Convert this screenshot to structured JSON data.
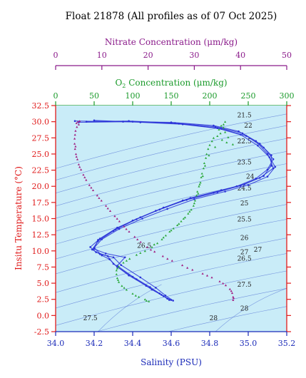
{
  "chart_data": {
    "type": "line",
    "title": "Float 21878  (All profiles as of 07 Oct 2025)",
    "xlabel": "Salinity (PSU)",
    "ylabel": "Insitu Temperature (°C)",
    "xlim": [
      34.0,
      35.2
    ],
    "ylim": [
      -2.5,
      32.5
    ],
    "x_ticks": [
      "34.0",
      "34.2",
      "34.4",
      "34.6",
      "34.8",
      "35.0",
      "35.2"
    ],
    "y_ticks": [
      "-2.5",
      "0.0",
      "2.5",
      "5.0",
      "7.5",
      "10.0",
      "12.5",
      "15.0",
      "17.5",
      "20.0",
      "22.5",
      "25.0",
      "27.5",
      "30.0",
      "32.5"
    ],
    "o2_axis": {
      "label_prefix": "O",
      "label_sub": "2",
      "label_suffix": " Concentration (μm/kg)",
      "lim": [
        0,
        300
      ],
      "ticks": [
        "0",
        "50",
        "100",
        "150",
        "200",
        "250",
        "300"
      ]
    },
    "nitrate_axis": {
      "label": "Nitrate Concentration (μm/kg)",
      "lim": [
        0,
        50
      ],
      "ticks": [
        "0",
        "10",
        "20",
        "30",
        "40",
        "50"
      ]
    },
    "colors": {
      "background": "#c9ecf8",
      "salinity": "#2a33d8",
      "oxygen": "#2aa83a",
      "nitrate": "#a01e82",
      "density": "#5a78d6",
      "temp_axis": "#e01a1a",
      "sal_axis": "#1a2ab8",
      "o2_axis": "#1a9a2a",
      "nitrate_axis": "#8a1a8a"
    },
    "density_labels": [
      {
        "text": "21.5",
        "s": 34.98,
        "t": 31.0
      },
      {
        "text": "22",
        "s": 35.0,
        "t": 29.4
      },
      {
        "text": "22.5",
        "s": 34.98,
        "t": 27.0
      },
      {
        "text": "23.5",
        "s": 34.98,
        "t": 23.7
      },
      {
        "text": "24",
        "s": 35.01,
        "t": 21.5
      },
      {
        "text": "24.5",
        "s": 34.98,
        "t": 19.7
      },
      {
        "text": "25",
        "s": 34.98,
        "t": 17.4
      },
      {
        "text": "25.5",
        "s": 34.98,
        "t": 14.9
      },
      {
        "text": "26",
        "s": 34.98,
        "t": 12.0
      },
      {
        "text": "26.5",
        "s": 34.98,
        "t": 8.8
      },
      {
        "text": "26.5",
        "s": 34.46,
        "t": 10.8
      },
      {
        "text": "27",
        "s": 34.98,
        "t": 9.8
      },
      {
        "text": "27",
        "s": 35.05,
        "t": 10.2
      },
      {
        "text": "27.5",
        "s": 34.98,
        "t": 4.8
      },
      {
        "text": "27.5",
        "s": 34.18,
        "t": -0.4
      },
      {
        "text": "28",
        "s": 34.98,
        "t": 1.1
      },
      {
        "text": "28",
        "s": 34.82,
        "t": -0.4
      }
    ],
    "series": [
      {
        "name": "Salinity",
        "axis": "salinity",
        "profiles": [
          [
            [
              34.1,
              30.1
            ],
            [
              34.35,
              30.0
            ],
            [
              34.6,
              29.9
            ],
            [
              34.82,
              29.4
            ],
            [
              34.95,
              28.5
            ],
            [
              35.04,
              27.0
            ],
            [
              35.1,
              25.0
            ],
            [
              35.14,
              23.0
            ],
            [
              35.1,
              21.5
            ],
            [
              35.0,
              20.2
            ],
            [
              34.88,
              19.2
            ],
            [
              34.72,
              18.0
            ],
            [
              34.58,
              16.5
            ],
            [
              34.45,
              15.0
            ],
            [
              34.33,
              13.4
            ],
            [
              34.24,
              11.8
            ],
            [
              34.2,
              10.5
            ],
            [
              34.24,
              9.3
            ],
            [
              34.28,
              8.7
            ],
            [
              34.32,
              7.5
            ],
            [
              34.42,
              5.6
            ],
            [
              34.5,
              4.0
            ],
            [
              34.56,
              3.0
            ],
            [
              34.6,
              2.4
            ]
          ],
          [
            [
              34.16,
              30.0
            ],
            [
              34.38,
              30.1
            ],
            [
              34.62,
              29.8
            ],
            [
              34.83,
              29.2
            ],
            [
              34.97,
              28.2
            ],
            [
              35.06,
              26.6
            ],
            [
              35.12,
              24.8
            ],
            [
              35.12,
              23.2
            ],
            [
              35.08,
              21.6
            ],
            [
              34.98,
              20.3
            ],
            [
              34.86,
              19.4
            ],
            [
              34.7,
              18.2
            ],
            [
              34.56,
              16.7
            ],
            [
              34.44,
              15.2
            ],
            [
              34.32,
              13.6
            ],
            [
              34.23,
              11.9
            ],
            [
              34.18,
              10.6
            ],
            [
              34.21,
              9.8
            ],
            [
              34.27,
              9.2
            ],
            [
              34.3,
              8.0
            ],
            [
              34.38,
              6.2
            ],
            [
              34.47,
              4.6
            ],
            [
              34.54,
              3.4
            ],
            [
              34.58,
              2.6
            ]
          ],
          [
            [
              34.2,
              30.2
            ],
            [
              34.44,
              29.9
            ],
            [
              34.66,
              29.6
            ],
            [
              34.86,
              28.9
            ],
            [
              34.99,
              27.8
            ],
            [
              35.08,
              26.0
            ],
            [
              35.13,
              24.2
            ],
            [
              35.1,
              22.6
            ],
            [
              35.04,
              21.2
            ],
            [
              34.94,
              20.0
            ],
            [
              34.82,
              19.0
            ],
            [
              34.66,
              17.8
            ],
            [
              34.52,
              16.2
            ],
            [
              34.4,
              14.7
            ],
            [
              34.3,
              13.1
            ],
            [
              34.22,
              11.5
            ],
            [
              34.19,
              10.2
            ],
            [
              34.23,
              9.5
            ],
            [
              34.3,
              9.0
            ],
            [
              34.34,
              7.8
            ],
            [
              34.44,
              5.9
            ],
            [
              34.52,
              4.3
            ],
            [
              34.57,
              3.1
            ],
            [
              34.61,
              2.3
            ]
          ],
          [
            [
              34.12,
              29.9
            ],
            [
              34.4,
              30.0
            ],
            [
              34.64,
              29.7
            ],
            [
              34.84,
              29.0
            ],
            [
              34.96,
              28.0
            ],
            [
              35.05,
              26.3
            ],
            [
              35.11,
              24.5
            ],
            [
              35.13,
              22.8
            ],
            [
              35.06,
              21.3
            ],
            [
              34.96,
              20.1
            ],
            [
              34.84,
              19.1
            ],
            [
              34.68,
              17.9
            ],
            [
              34.54,
              16.4
            ],
            [
              34.42,
              14.9
            ],
            [
              34.31,
              13.3
            ],
            [
              34.22,
              11.7
            ],
            [
              34.2,
              10.3
            ],
            [
              34.26,
              9.6
            ],
            [
              34.36,
              9.0
            ],
            [
              34.32,
              7.7
            ],
            [
              34.4,
              6.0
            ],
            [
              34.49,
              4.4
            ],
            [
              34.55,
              3.2
            ],
            [
              34.59,
              2.4
            ]
          ]
        ]
      },
      {
        "name": "Oxygen",
        "axis": "o2",
        "points": [
          [
            215,
            29.4
          ],
          [
            212,
            28.8
          ],
          [
            214,
            28.2
          ],
          [
            210,
            27.8
          ],
          [
            205,
            27.5
          ],
          [
            203,
            27.0
          ],
          [
            200,
            26.4
          ],
          [
            198,
            25.8
          ],
          [
            196,
            25.0
          ],
          [
            195,
            24.4
          ],
          [
            193,
            23.6
          ],
          [
            192,
            22.8
          ],
          [
            190,
            22.0
          ],
          [
            189,
            21.4
          ],
          [
            188,
            20.6
          ],
          [
            186,
            20.0
          ],
          [
            184,
            19.2
          ],
          [
            183,
            18.6
          ],
          [
            181,
            17.8
          ],
          [
            179,
            17.0
          ],
          [
            176,
            16.4
          ],
          [
            172,
            15.8
          ],
          [
            168,
            15.2
          ],
          [
            163,
            14.6
          ],
          [
            158,
            14.0
          ],
          [
            153,
            13.5
          ],
          [
            148,
            13.0
          ],
          [
            143,
            12.4
          ],
          [
            138,
            11.8
          ],
          [
            132,
            11.2
          ],
          [
            125,
            10.6
          ],
          [
            116,
            10.0
          ],
          [
            105,
            9.4
          ],
          [
            96,
            8.8
          ],
          [
            88,
            8.2
          ],
          [
            82,
            7.6
          ],
          [
            79,
            7.0
          ],
          [
            79,
            6.4
          ],
          [
            80,
            5.8
          ],
          [
            82,
            5.2
          ],
          [
            86,
            4.6
          ],
          [
            92,
            4.0
          ],
          [
            100,
            3.4
          ],
          [
            108,
            2.9
          ],
          [
            116,
            2.5
          ],
          [
            121,
            2.2
          ],
          [
            218,
            29.1
          ],
          [
            220,
            28.4
          ],
          [
            216,
            27.2
          ],
          [
            222,
            26.8
          ],
          [
            230,
            26.5
          ],
          [
            224,
            27.6
          ],
          [
            207,
            26.1
          ],
          [
            199,
            24.8
          ],
          [
            194,
            23.2
          ],
          [
            191,
            21.6
          ],
          [
            187,
            20.3
          ],
          [
            185,
            18.9
          ],
          [
            180,
            17.4
          ],
          [
            174,
            16.1
          ],
          [
            166,
            15.0
          ],
          [
            160,
            14.2
          ],
          [
            150,
            13.2
          ],
          [
            140,
            12.1
          ],
          [
            128,
            11.0
          ],
          [
            110,
            9.7
          ],
          [
            92,
            8.5
          ],
          [
            80,
            7.3
          ],
          [
            81,
            5.5
          ],
          [
            89,
            4.3
          ],
          [
            104,
            3.1
          ],
          [
            118,
            2.3
          ],
          [
            220,
            30.0
          ],
          [
            218,
            29.6
          ]
        ]
      },
      {
        "name": "Nitrate",
        "axis": "nitrate",
        "points": [
          [
            4.8,
            30.0
          ],
          [
            5.0,
            29.6
          ],
          [
            4.6,
            29.2
          ],
          [
            4.3,
            28.6
          ],
          [
            4.2,
            28.0
          ],
          [
            4.1,
            27.4
          ],
          [
            4.1,
            26.6
          ],
          [
            4.2,
            25.8
          ],
          [
            4.4,
            25.0
          ],
          [
            4.7,
            24.2
          ],
          [
            5.0,
            23.4
          ],
          [
            5.5,
            22.6
          ],
          [
            6.0,
            21.8
          ],
          [
            6.6,
            21.0
          ],
          [
            7.3,
            20.2
          ],
          [
            8.1,
            19.4
          ],
          [
            9.0,
            18.6
          ],
          [
            9.9,
            17.8
          ],
          [
            10.9,
            17.0
          ],
          [
            11.8,
            16.2
          ],
          [
            12.8,
            15.4
          ],
          [
            13.8,
            14.6
          ],
          [
            14.8,
            13.8
          ],
          [
            15.9,
            13.0
          ],
          [
            17.1,
            12.2
          ],
          [
            18.4,
            11.4
          ],
          [
            19.8,
            10.6
          ],
          [
            21.4,
            9.9
          ],
          [
            23.2,
            9.2
          ],
          [
            25.2,
            8.5
          ],
          [
            27.4,
            7.8
          ],
          [
            29.6,
            7.1
          ],
          [
            31.8,
            6.5
          ],
          [
            33.8,
            5.9
          ],
          [
            35.5,
            5.3
          ],
          [
            36.8,
            4.7
          ],
          [
            37.7,
            4.1
          ],
          [
            38.2,
            3.5
          ],
          [
            38.4,
            2.9
          ],
          [
            38.4,
            2.4
          ],
          [
            5.2,
            30.1
          ],
          [
            4.5,
            29.8
          ],
          [
            4.3,
            26.2
          ],
          [
            4.5,
            24.6
          ],
          [
            5.2,
            23.0
          ],
          [
            6.3,
            21.4
          ],
          [
            7.7,
            19.8
          ],
          [
            9.4,
            18.2
          ],
          [
            11.3,
            16.6
          ],
          [
            13.3,
            15.0
          ],
          [
            15.3,
            13.4
          ],
          [
            17.7,
            11.8
          ],
          [
            20.6,
            10.2
          ],
          [
            24.2,
            8.8
          ],
          [
            28.5,
            7.4
          ],
          [
            32.8,
            6.2
          ],
          [
            36.2,
            5.0
          ],
          [
            38.0,
            3.8
          ],
          [
            38.5,
            2.7
          ]
        ]
      }
    ]
  }
}
